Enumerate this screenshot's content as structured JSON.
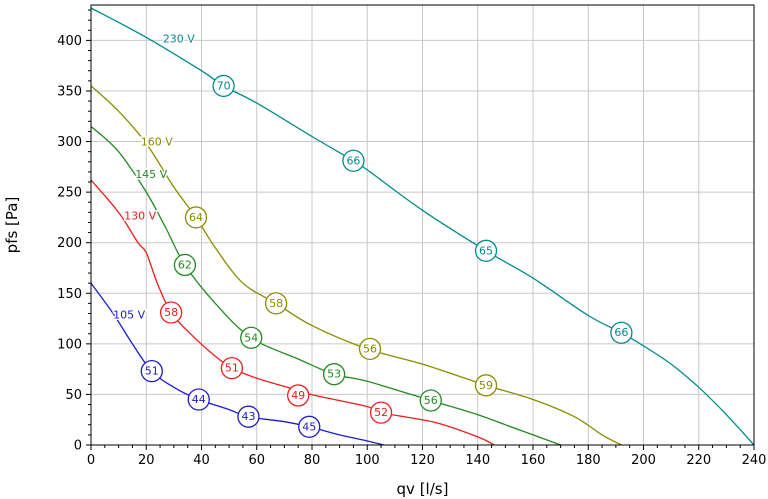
{
  "chart_data": {
    "type": "line",
    "xlabel": "qv [l/s]",
    "ylabel": "pfs [Pa]",
    "xlim": [
      0,
      240
    ],
    "ylim": [
      0,
      435
    ],
    "xticks": [
      0,
      20,
      40,
      60,
      80,
      100,
      120,
      140,
      160,
      180,
      200,
      220,
      240
    ],
    "yticks": [
      0,
      50,
      100,
      150,
      200,
      250,
      300,
      350,
      400
    ],
    "grid": true,
    "series": [
      {
        "name": "230 V",
        "color": "#008b8b",
        "points": [
          [
            0,
            432
          ],
          [
            20,
            403
          ],
          [
            40,
            370
          ],
          [
            48,
            355
          ],
          [
            60,
            338
          ],
          [
            80,
            305
          ],
          [
            95,
            281
          ],
          [
            100,
            272
          ],
          [
            120,
            232
          ],
          [
            143,
            192
          ],
          [
            160,
            165
          ],
          [
            180,
            128
          ],
          [
            192,
            111
          ],
          [
            200,
            98
          ],
          [
            210,
            80
          ],
          [
            220,
            57
          ],
          [
            230,
            30
          ],
          [
            240,
            0
          ]
        ],
        "markers": [
          {
            "x": 48,
            "y": 355,
            "label": "70"
          },
          {
            "x": 95,
            "y": 281,
            "label": "66"
          },
          {
            "x": 143,
            "y": 192,
            "label": "65"
          },
          {
            "x": 192,
            "y": 111,
            "label": "66"
          }
        ]
      },
      {
        "name": "160 V",
        "color": "#8b8b00",
        "points": [
          [
            0,
            355
          ],
          [
            10,
            330
          ],
          [
            20,
            298
          ],
          [
            30,
            255
          ],
          [
            38,
            225
          ],
          [
            45,
            195
          ],
          [
            55,
            160
          ],
          [
            67,
            140
          ],
          [
            80,
            118
          ],
          [
            100,
            95
          ],
          [
            120,
            80
          ],
          [
            143,
            59
          ],
          [
            160,
            45
          ],
          [
            175,
            28
          ],
          [
            185,
            10
          ],
          [
            192,
            0
          ]
        ],
        "markers": [
          {
            "x": 38,
            "y": 225,
            "label": "64"
          },
          {
            "x": 67,
            "y": 140,
            "label": "58"
          },
          {
            "x": 101,
            "y": 95,
            "label": "56"
          },
          {
            "x": 143,
            "y": 59,
            "label": "59"
          }
        ]
      },
      {
        "name": "145 V",
        "color": "#228b22",
        "points": [
          [
            0,
            315
          ],
          [
            10,
            290
          ],
          [
            20,
            250
          ],
          [
            27,
            215
          ],
          [
            34,
            178
          ],
          [
            45,
            140
          ],
          [
            58,
            106
          ],
          [
            75,
            85
          ],
          [
            88,
            70
          ],
          [
            100,
            63
          ],
          [
            123,
            44
          ],
          [
            140,
            30
          ],
          [
            150,
            20
          ],
          [
            162,
            8
          ],
          [
            170,
            0
          ]
        ],
        "markers": [
          {
            "x": 34,
            "y": 178,
            "label": "62"
          },
          {
            "x": 58,
            "y": 106,
            "label": "54"
          },
          {
            "x": 88,
            "y": 70,
            "label": "53"
          },
          {
            "x": 123,
            "y": 44,
            "label": "56"
          }
        ]
      },
      {
        "name": "130 V",
        "color": "#ee1c1c",
        "points": [
          [
            0,
            262
          ],
          [
            10,
            230
          ],
          [
            17,
            200
          ],
          [
            20,
            190
          ],
          [
            24,
            160
          ],
          [
            29,
            131
          ],
          [
            36,
            110
          ],
          [
            44,
            90
          ],
          [
            51,
            76
          ],
          [
            60,
            66
          ],
          [
            75,
            54
          ],
          [
            81,
            49
          ],
          [
            100,
            38
          ],
          [
            105,
            32
          ],
          [
            125,
            22
          ],
          [
            140,
            8
          ],
          [
            146,
            0
          ]
        ],
        "markers": [
          {
            "x": 29,
            "y": 131,
            "label": "58"
          },
          {
            "x": 51,
            "y": 76,
            "label": "51"
          },
          {
            "x": 75,
            "y": 49,
            "label": "49"
          },
          {
            "x": 105,
            "y": 32,
            "label": "52"
          }
        ]
      },
      {
        "name": "105 V",
        "color": "#1c1ccd",
        "points": [
          [
            0,
            160
          ],
          [
            8,
            130
          ],
          [
            15,
            100
          ],
          [
            22,
            73
          ],
          [
            30,
            57
          ],
          [
            39,
            45
          ],
          [
            50,
            35
          ],
          [
            57,
            28
          ],
          [
            70,
            23
          ],
          [
            79,
            18
          ],
          [
            90,
            10
          ],
          [
            100,
            4
          ],
          [
            106,
            0
          ]
        ],
        "markers": [
          {
            "x": 22,
            "y": 73,
            "label": "51"
          },
          {
            "x": 39,
            "y": 45,
            "label": "44"
          },
          {
            "x": 57,
            "y": 28,
            "label": "43"
          },
          {
            "x": 79,
            "y": 18,
            "label": "45"
          }
        ]
      }
    ],
    "series_label_positions": [
      {
        "series": "230 V",
        "x": 26,
        "y": 398
      },
      {
        "series": "160 V",
        "x": 18,
        "y": 296
      },
      {
        "series": "145 V",
        "x": 16,
        "y": 264
      },
      {
        "series": "130 V",
        "x": 12,
        "y": 223
      },
      {
        "series": "105 V",
        "x": 8,
        "y": 125
      }
    ]
  }
}
